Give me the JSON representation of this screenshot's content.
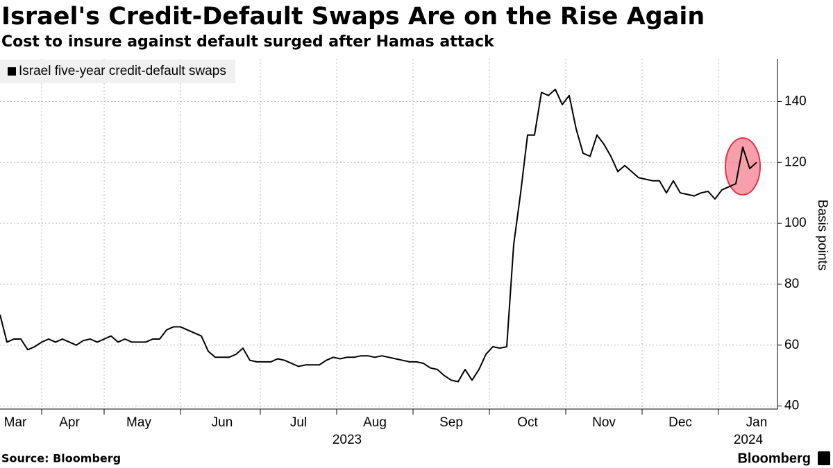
{
  "chart_data": {
    "type": "line",
    "title": "Israel's Credit-Default Swaps Are on the Rise Again",
    "subtitle": "Cost to insure against default surged after Hamas attack",
    "y_axis_label": "Basis points",
    "source": "Source: Bloomberg",
    "brand": "Bloomberg",
    "categories": [
      null,
      null,
      "Mar",
      null,
      null,
      null,
      null,
      null,
      null,
      null,
      "Apr",
      null,
      null,
      null,
      null,
      null,
      null,
      null,
      null,
      null,
      "May",
      null,
      null,
      null,
      null,
      null,
      null,
      null,
      null,
      null,
      null,
      null,
      "Jun",
      null,
      null,
      null,
      null,
      null,
      null,
      null,
      null,
      null,
      null,
      "Jul",
      null,
      null,
      null,
      null,
      null,
      null,
      null,
      null,
      null,
      null,
      "Aug",
      null,
      null,
      null,
      null,
      null,
      null,
      null,
      null,
      null,
      null,
      "Sep",
      null,
      null,
      null,
      null,
      null,
      null,
      null,
      null,
      null,
      null,
      "Oct",
      null,
      null,
      null,
      null,
      null,
      null,
      null,
      null,
      null,
      null,
      "Nov",
      null,
      null,
      null,
      null,
      null,
      null,
      null,
      null,
      null,
      null,
      "Dec",
      null,
      null,
      null,
      null,
      null,
      null,
      null,
      null,
      null,
      null,
      "Jan"
    ],
    "year_labels": [
      "2023",
      "2024"
    ],
    "series": [
      {
        "name": "Israel five-year credit-default swaps",
        "color": "#000000",
        "values": [
          70,
          61,
          62,
          62,
          58.5,
          59.5,
          61,
          62,
          61,
          62,
          61,
          60,
          61.5,
          62,
          61,
          62,
          63,
          61,
          62,
          61,
          61,
          61,
          62,
          62,
          65,
          66,
          66,
          65,
          64,
          63,
          58,
          56,
          56,
          56,
          57,
          59,
          55,
          54.5,
          54.5,
          54.5,
          55.5,
          55,
          54,
          53,
          53.5,
          53.5,
          53.5,
          55,
          56,
          55.5,
          56,
          56,
          56.5,
          56.5,
          56,
          56.5,
          56,
          55.5,
          55,
          54.5,
          54.5,
          54,
          52.5,
          52,
          50,
          48.5,
          48,
          52,
          48.5,
          52,
          57,
          59.5,
          59,
          59.5,
          93,
          110,
          129,
          129,
          143,
          142,
          144,
          139,
          142,
          131,
          123,
          122,
          129,
          126,
          122,
          117,
          119,
          117,
          115,
          114.5,
          114,
          114,
          110,
          114,
          110,
          109.5,
          109,
          110,
          110.5,
          108,
          111,
          112,
          113,
          125,
          118,
          120
        ]
      }
    ],
    "ylim": [
      39,
      154
    ],
    "yticks": [
      40,
      60,
      80,
      100,
      120,
      140
    ],
    "grid": true,
    "legend": "top-left"
  }
}
